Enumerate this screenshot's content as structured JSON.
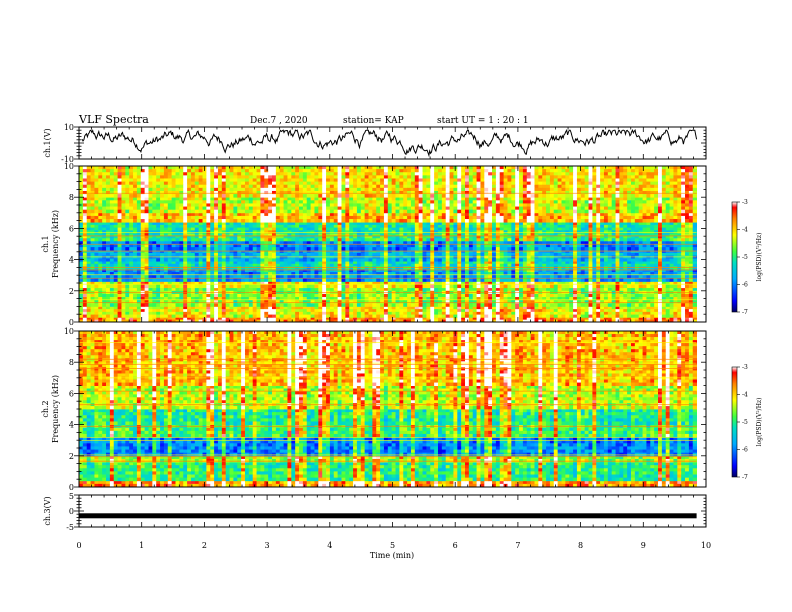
{
  "header": {
    "title": "VLF Spectra",
    "date": "Dec.7 , 2020",
    "station": "station= KAP",
    "start_ut": "start UT = 1 : 20 : 1"
  },
  "chart_data": [
    {
      "name": "ch1-voltage",
      "type": "line",
      "ylabel": "ch.1(V)",
      "ylim": [
        -10,
        10
      ],
      "ytick_labels": [
        "10",
        "-10"
      ],
      "xlim": [
        0,
        10
      ],
      "description_values": {
        "x_start": 0.05,
        "x_end": 9.85,
        "mean": 2,
        "min": -8,
        "max": 8
      }
    },
    {
      "name": "ch1-spectrogram",
      "type": "heatmap",
      "ylabel": "ch.1\nFrequency (kHz)",
      "ylim": [
        0,
        10
      ],
      "ytick_labels": [
        "0",
        "2",
        "4",
        "6",
        "8",
        "10"
      ],
      "xlim": [
        0,
        10
      ],
      "data_x_range": [
        0,
        9.85
      ],
      "colorbar": {
        "label": "log(PSD)(V²/Hz)",
        "range": [
          -7,
          -3
        ],
        "tick_labels": [
          "-3",
          "-4",
          "-5",
          "-6",
          "-7"
        ]
      },
      "bands_log_psd": [
        {
          "f": [
            0,
            0.3
          ],
          "v": -3.6
        },
        {
          "f": [
            0.3,
            1.0
          ],
          "v": -4.2
        },
        {
          "f": [
            1.0,
            2.2
          ],
          "v": -4.6
        },
        {
          "f": [
            2.2,
            2.6
          ],
          "v": -4.3
        },
        {
          "f": [
            2.6,
            3.4
          ],
          "v": -5.9
        },
        {
          "f": [
            3.4,
            3.9
          ],
          "v": -5.3
        },
        {
          "f": [
            3.9,
            4.6
          ],
          "v": -5.7
        },
        {
          "f": [
            4.6,
            5.2
          ],
          "v": -6.0
        },
        {
          "f": [
            5.2,
            5.7
          ],
          "v": -5.0
        },
        {
          "f": [
            5.7,
            6.4
          ],
          "v": -5.2
        },
        {
          "f": [
            6.4,
            7.0
          ],
          "v": -3.9
        },
        {
          "f": [
            7.0,
            8.0
          ],
          "v": -4.4
        },
        {
          "f": [
            8.0,
            10.0
          ],
          "v": -4.1
        }
      ]
    },
    {
      "name": "ch2-spectrogram",
      "type": "heatmap",
      "ylabel": "ch.2\nFrequency (kHz)",
      "ylim": [
        0,
        10
      ],
      "ytick_labels": [
        "0",
        "2",
        "4",
        "6",
        "8",
        "10"
      ],
      "xlim": [
        0,
        10
      ],
      "data_x_range": [
        0,
        9.85
      ],
      "colorbar": {
        "label": "log(PSD)(V²/Hz)",
        "range": [
          -7,
          -3
        ],
        "tick_labels": [
          "-3",
          "-4",
          "-5",
          "-6",
          "-7"
        ]
      },
      "bands_log_psd": [
        {
          "f": [
            0,
            0.4
          ],
          "v": -3.7
        },
        {
          "f": [
            0.4,
            1.6
          ],
          "v": -5.0
        },
        {
          "f": [
            1.6,
            2.0
          ],
          "v": -4.5
        },
        {
          "f": [
            2.0,
            3.2
          ],
          "v": -6.0
        },
        {
          "f": [
            3.2,
            4.0
          ],
          "v": -4.9
        },
        {
          "f": [
            4.0,
            5.0
          ],
          "v": -5.1
        },
        {
          "f": [
            5.0,
            6.5
          ],
          "v": -4.4
        },
        {
          "f": [
            6.5,
            10.0
          ],
          "v": -3.9
        }
      ]
    },
    {
      "name": "ch3-voltage",
      "type": "line",
      "ylabel": "ch.3(V)",
      "ylim": [
        -5,
        5
      ],
      "ytick_labels": [
        "5",
        "0",
        "-5"
      ],
      "xlim": [
        0,
        10
      ],
      "xlabel": "Time (min)",
      "xtick_labels": [
        "0",
        "1",
        "2",
        "3",
        "4",
        "5",
        "6",
        "7",
        "8",
        "9",
        "10"
      ],
      "level": -1.5,
      "data_x_range": [
        0,
        9.85
      ]
    }
  ]
}
